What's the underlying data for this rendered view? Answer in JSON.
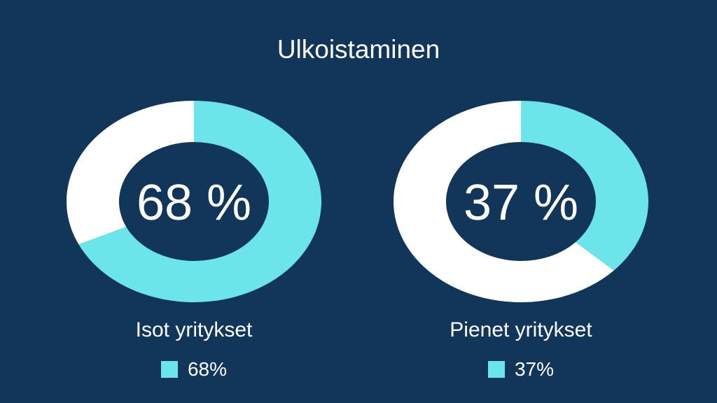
{
  "chart_data": {
    "type": "pie",
    "title": "Ulkoistaminen",
    "charts": [
      {
        "category": "Isot yritykset",
        "value": 68,
        "center_label": "68 %",
        "legend_label": "68%"
      },
      {
        "category": "Pienet yritykset",
        "value": 37,
        "center_label": "37 %",
        "legend_label": "37%"
      }
    ],
    "colors": {
      "value": "#6be5ea",
      "remainder": "#ffffff",
      "background": "#11365a"
    }
  }
}
